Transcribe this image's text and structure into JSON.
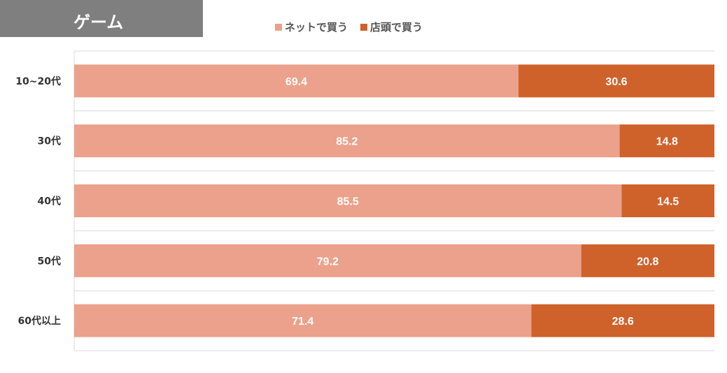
{
  "header": {
    "title": "ゲーム"
  },
  "legend": [
    {
      "label": "ネットで買う",
      "color": "#eba18b"
    },
    {
      "label": "店頭で買う",
      "color": "#cf622b"
    }
  ],
  "chart_data": {
    "type": "bar",
    "orientation": "horizontal",
    "stacked": true,
    "categories": [
      "10~20代",
      "30代",
      "40代",
      "50代",
      "60代以上"
    ],
    "series": [
      {
        "name": "ネットで買う",
        "color": "#eba18b",
        "values": [
          69.4,
          85.2,
          85.5,
          79.2,
          71.4
        ]
      },
      {
        "name": "店頭で買う",
        "color": "#cf622b",
        "values": [
          30.6,
          14.8,
          14.5,
          20.8,
          28.6
        ]
      }
    ],
    "xlim": [
      0,
      100
    ],
    "grid": true,
    "legend_position": "top",
    "data_label_color": "#ffffff",
    "category_label_color": "#333333",
    "gridline_color": "#d9d9d9"
  }
}
